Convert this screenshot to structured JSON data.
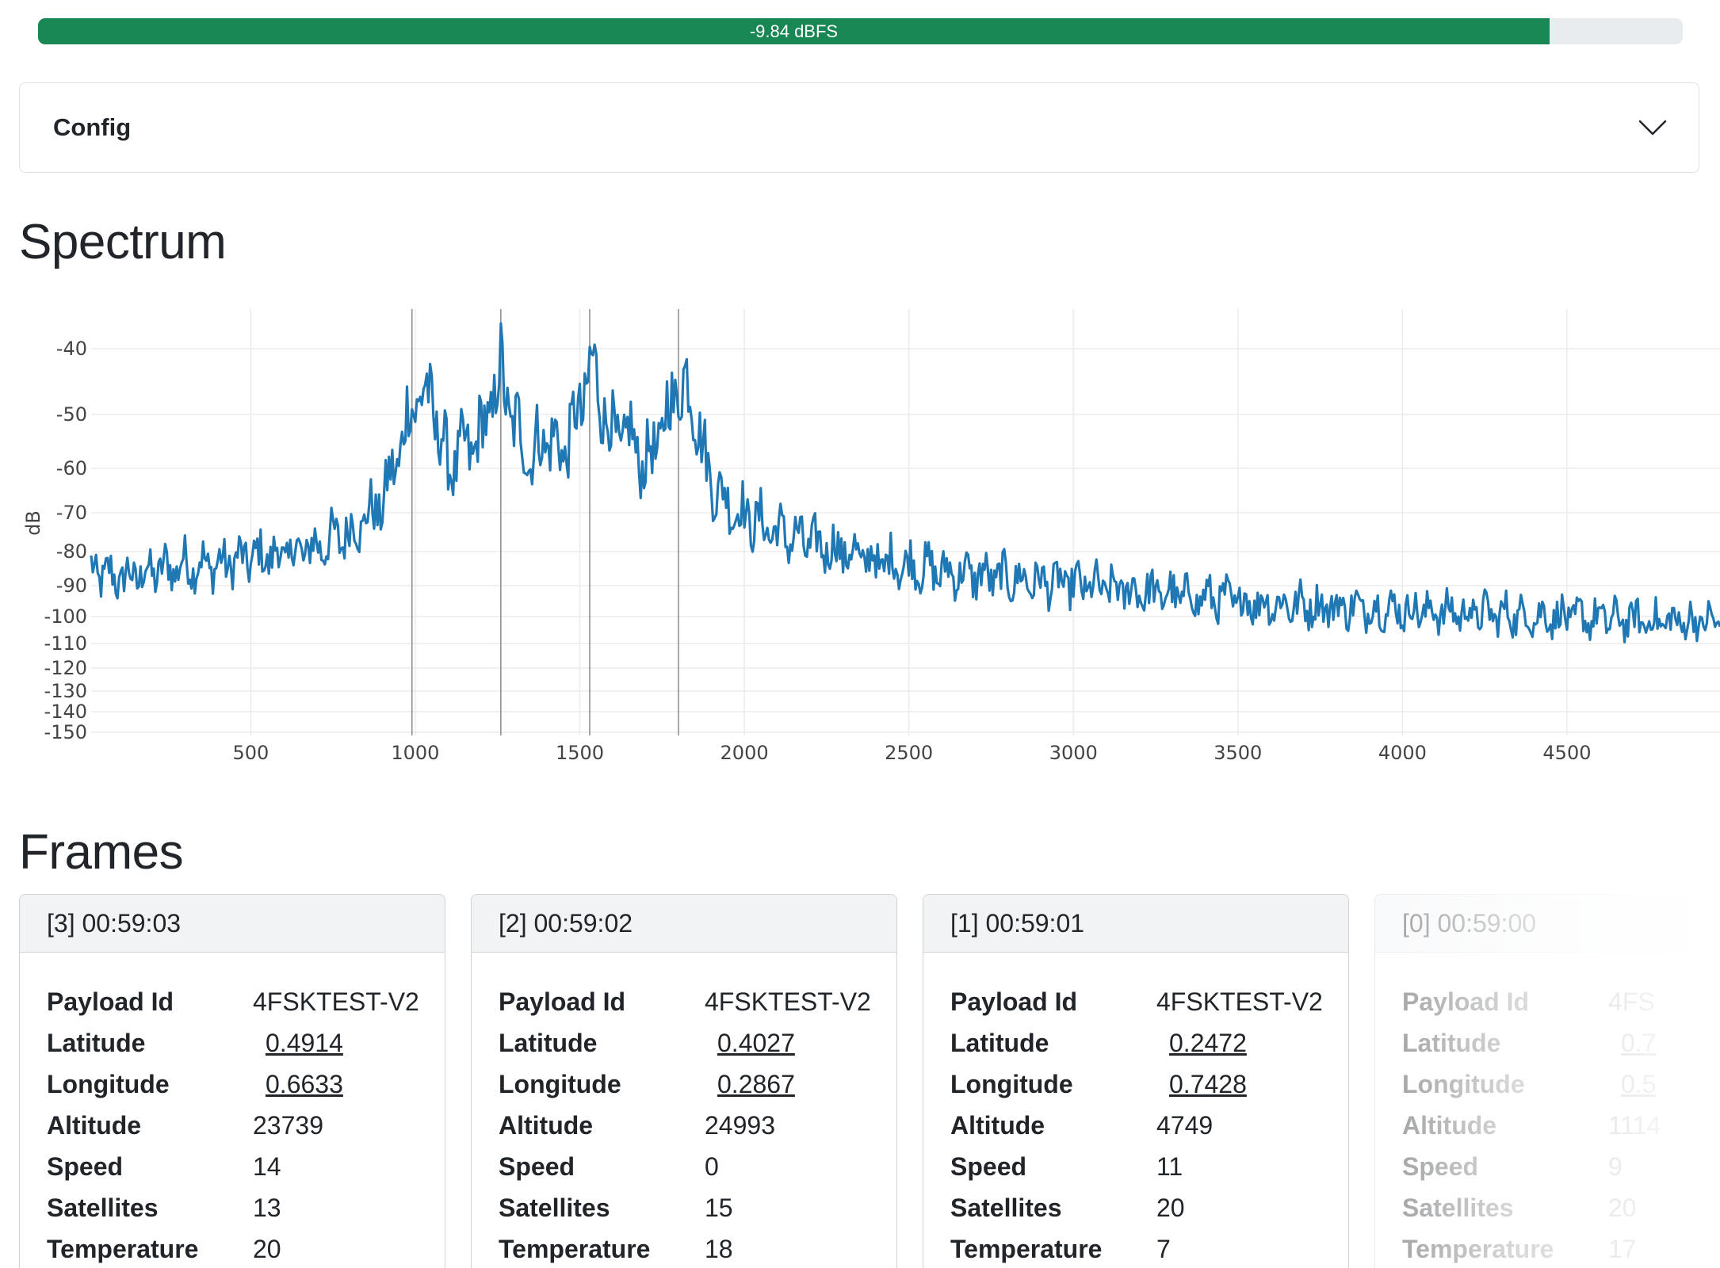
{
  "meter": {
    "label": "-9.84 dBFS",
    "fraction": 0.919,
    "color": "#198754"
  },
  "config": {
    "title": "Config"
  },
  "headings": {
    "spectrum": "Spectrum",
    "frames": "Frames"
  },
  "chart_data": {
    "type": "line",
    "title": "",
    "xlabel": "",
    "ylabel": "dB",
    "x_ticks": [
      500,
      1000,
      1500,
      2000,
      2500,
      3000,
      3500,
      4000,
      4500
    ],
    "y_ticks": [
      -40,
      -50,
      -60,
      -70,
      -80,
      -90,
      -100,
      -110,
      -120,
      -130,
      -140,
      -150
    ],
    "xlim": [
      15,
      4965
    ],
    "y_scale": "compressed (non-linear)",
    "grid": true,
    "marker_lines_x": [
      990,
      1260,
      1530,
      1800
    ],
    "series": [
      {
        "color": "#1f77b4",
        "x": [
          15,
          100,
          200,
          300,
          400,
          500,
          600,
          700,
          800,
          900,
          950,
          1000,
          1050,
          1100,
          1150,
          1200,
          1260,
          1300,
          1350,
          1400,
          1450,
          1500,
          1530,
          1560,
          1600,
          1650,
          1700,
          1750,
          1800,
          1850,
          1880,
          1900,
          1950,
          2000,
          2100,
          2200,
          2300,
          2400,
          2500,
          2600,
          2700,
          2800,
          2900,
          3000,
          3200,
          3400,
          3600,
          3800,
          4000,
          4200,
          4400,
          4600,
          4800,
          4965
        ],
        "y": [
          -86,
          -88,
          -86,
          -84,
          -84,
          -82,
          -81,
          -79,
          -75,
          -68,
          -57,
          -47,
          -48,
          -60,
          -57,
          -54,
          -44,
          -52,
          -58,
          -54,
          -57,
          -50,
          -43,
          -46,
          -55,
          -54,
          -60,
          -53,
          -45,
          -48,
          -59,
          -63,
          -68,
          -71,
          -75,
          -78,
          -80,
          -83,
          -84,
          -86,
          -87,
          -88,
          -89,
          -90,
          -92,
          -94,
          -96,
          -97,
          -98,
          -99,
          -100,
          -101,
          -102,
          -102
        ]
      }
    ]
  },
  "frames": [
    {
      "header": "[3] 00:59:03",
      "rows": [
        {
          "label": "Payload Id",
          "value": "4FSKTEST-V2"
        },
        {
          "label": "Latitude",
          "value": "0.4914"
        },
        {
          "label": "Longitude",
          "value": "0.6633"
        },
        {
          "label": "Altitude",
          "value": "23739"
        },
        {
          "label": "Speed",
          "value": "14"
        },
        {
          "label": "Satellites",
          "value": "13"
        },
        {
          "label": "Temperature",
          "value": "20"
        }
      ]
    },
    {
      "header": "[2] 00:59:02",
      "rows": [
        {
          "label": "Payload Id",
          "value": "4FSKTEST-V2"
        },
        {
          "label": "Latitude",
          "value": "0.4027"
        },
        {
          "label": "Longitude",
          "value": "0.2867"
        },
        {
          "label": "Altitude",
          "value": "24993"
        },
        {
          "label": "Speed",
          "value": "0"
        },
        {
          "label": "Satellites",
          "value": "15"
        },
        {
          "label": "Temperature",
          "value": "18"
        }
      ]
    },
    {
      "header": "[1] 00:59:01",
      "rows": [
        {
          "label": "Payload Id",
          "value": "4FSKTEST-V2"
        },
        {
          "label": "Latitude",
          "value": "0.2472"
        },
        {
          "label": "Longitude",
          "value": "0.7428"
        },
        {
          "label": "Altitude",
          "value": "4749"
        },
        {
          "label": "Speed",
          "value": "11"
        },
        {
          "label": "Satellites",
          "value": "20"
        },
        {
          "label": "Temperature",
          "value": "7"
        }
      ]
    },
    {
      "header": "[0] 00:59:00",
      "rows": [
        {
          "label": "Payload Id",
          "value": "4FS"
        },
        {
          "label": "Latitude",
          "value": "0.7"
        },
        {
          "label": "Longitude",
          "value": "0.5"
        },
        {
          "label": "Altitude",
          "value": "1114"
        },
        {
          "label": "Speed",
          "value": "9"
        },
        {
          "label": "Satellites",
          "value": "20"
        },
        {
          "label": "Temperature",
          "value": "17"
        }
      ]
    }
  ]
}
